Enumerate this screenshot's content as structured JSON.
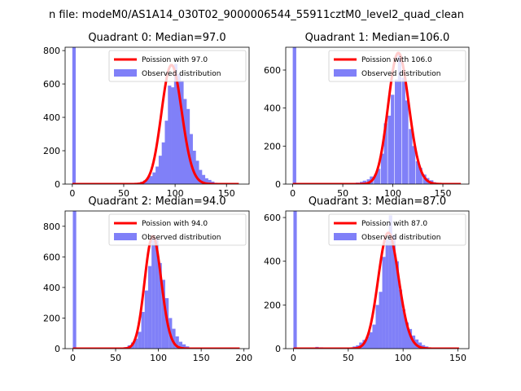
{
  "figure": {
    "suptitle": "n file: modeM0/AS1A14_030T02_9000006544_55911cztM0_level2_quad_clean",
    "colors": {
      "hist": "#8080f8",
      "fit": "#ff0000",
      "axes": "#000000",
      "background": "#ffffff"
    }
  },
  "chart_data": [
    {
      "type": "bar",
      "title": "Quadrant 0: Median=97.0",
      "median": 97.0,
      "xlim": [
        -7,
        172
      ],
      "ylim": [
        0,
        820
      ],
      "xticks": [
        0,
        50,
        100,
        150
      ],
      "yticks": [
        0,
        200,
        400,
        600,
        800
      ],
      "legend": {
        "placement": "top-right",
        "fit_label": "Poission with 97.0",
        "hist_label": "Observed distribution"
      },
      "series": [
        {
          "name": "Observed distribution",
          "type": "hist",
          "bin_width": 3.3,
          "bins": [
            [
              0,
              820
            ],
            [
              60,
              5
            ],
            [
              63,
              8
            ],
            [
              66,
              14
            ],
            [
              69,
              22
            ],
            [
              72,
              35
            ],
            [
              75,
              48
            ],
            [
              78,
              70
            ],
            [
              81,
              105
            ],
            [
              84,
              170
            ],
            [
              87,
              250
            ],
            [
              90,
              380
            ],
            [
              93,
              590
            ],
            [
              96,
              580
            ],
            [
              99,
              720
            ],
            [
              102,
              660
            ],
            [
              105,
              620
            ],
            [
              108,
              510
            ],
            [
              111,
              450
            ],
            [
              114,
              300
            ],
            [
              117,
              200
            ],
            [
              120,
              140
            ],
            [
              123,
              85
            ],
            [
              126,
              55
            ],
            [
              129,
              35
            ],
            [
              132,
              25
            ],
            [
              135,
              15
            ],
            [
              138,
              8
            ]
          ]
        },
        {
          "name": "Poission with 97.0",
          "type": "line",
          "mean": 97.0,
          "peak": 713,
          "x_range": [
            0,
            162
          ]
        }
      ]
    },
    {
      "type": "bar",
      "title": "Quadrant 1: Median=106.0",
      "median": 106.0,
      "xlim": [
        -7,
        176
      ],
      "ylim": [
        0,
        720
      ],
      "xticks": [
        0,
        50,
        100,
        150
      ],
      "yticks": [
        0,
        200,
        400,
        600
      ],
      "legend": {
        "placement": "top-right",
        "fit_label": "Poission with 106.0",
        "hist_label": "Observed distribution"
      },
      "series": [
        {
          "name": "Observed distribution",
          "type": "hist",
          "bin_width": 3.5,
          "bins": [
            [
              0,
              720
            ],
            [
              56,
              3
            ],
            [
              60,
              5
            ],
            [
              63,
              8
            ],
            [
              67,
              12
            ],
            [
              70,
              18
            ],
            [
              74,
              25
            ],
            [
              77,
              40
            ],
            [
              81,
              50
            ],
            [
              84,
              80
            ],
            [
              88,
              160
            ],
            [
              91,
              320
            ],
            [
              95,
              360
            ],
            [
              98,
              470
            ],
            [
              102,
              550
            ],
            [
              105,
              680
            ],
            [
              109,
              560
            ],
            [
              112,
              440
            ],
            [
              116,
              290
            ],
            [
              119,
              200
            ],
            [
              123,
              120
            ],
            [
              126,
              85
            ],
            [
              130,
              50
            ],
            [
              133,
              32
            ],
            [
              137,
              20
            ],
            [
              140,
              10
            ]
          ]
        },
        {
          "name": "Poission with 106.0",
          "type": "line",
          "mean": 106.0,
          "peak": 690,
          "x_range": [
            0,
            168
          ]
        }
      ]
    },
    {
      "type": "bar",
      "title": "Quadrant 2: Median=94.0",
      "median": 94.0,
      "xlim": [
        -9,
        206
      ],
      "ylim": [
        0,
        900
      ],
      "xticks": [
        0,
        50,
        100,
        150,
        200
      ],
      "yticks": [
        0,
        200,
        400,
        600,
        800
      ],
      "legend": {
        "placement": "top-right",
        "fit_label": "Poission with 94.0",
        "hist_label": "Observed distribution"
      },
      "series": [
        {
          "name": "Observed distribution",
          "type": "hist",
          "bin_width": 4.0,
          "bins": [
            [
              0,
              900
            ],
            [
              56,
              5
            ],
            [
              60,
              10
            ],
            [
              64,
              22
            ],
            [
              68,
              40
            ],
            [
              72,
              65
            ],
            [
              76,
              110
            ],
            [
              80,
              240
            ],
            [
              84,
              380
            ],
            [
              88,
              540
            ],
            [
              92,
              740
            ],
            [
              96,
              720
            ],
            [
              100,
              560
            ],
            [
              104,
              450
            ],
            [
              108,
              330
            ],
            [
              112,
              200
            ],
            [
              116,
              130
            ],
            [
              120,
              80
            ],
            [
              124,
              45
            ],
            [
              128,
              28
            ],
            [
              132,
              15
            ]
          ]
        },
        {
          "name": "Poission with 94.0",
          "type": "line",
          "mean": 94.0,
          "peak": 735,
          "x_range": [
            0,
            195
          ]
        }
      ]
    },
    {
      "type": "bar",
      "title": "Quadrant 3: Median=87.0",
      "median": 87.0,
      "xlim": [
        -7,
        160
      ],
      "ylim": [
        0,
        630
      ],
      "xticks": [
        0,
        50,
        100,
        150
      ],
      "yticks": [
        0,
        200,
        400,
        600
      ],
      "legend": {
        "placement": "top-right",
        "fit_label": "Poission with 87.0",
        "hist_label": "Observed distribution"
      },
      "series": [
        {
          "name": "Observed distribution",
          "type": "hist",
          "bin_width": 3.1,
          "bins": [
            [
              0,
              630
            ],
            [
              20,
              8
            ],
            [
              24,
              6
            ],
            [
              51,
              5
            ],
            [
              54,
              10
            ],
            [
              57,
              15
            ],
            [
              60,
              28
            ],
            [
              63,
              40
            ],
            [
              66,
              55
            ],
            [
              69,
              75
            ],
            [
              72,
              110
            ],
            [
              75,
              200
            ],
            [
              78,
              260
            ],
            [
              81,
              420
            ],
            [
              84,
              500
            ],
            [
              87,
              610
            ],
            [
              90,
              520
            ],
            [
              93,
              400
            ],
            [
              96,
              270
            ],
            [
              99,
              180
            ],
            [
              102,
              120
            ],
            [
              105,
              90
            ],
            [
              108,
              60
            ],
            [
              111,
              42
            ],
            [
              114,
              28
            ],
            [
              117,
              16
            ],
            [
              120,
              10
            ]
          ]
        },
        {
          "name": "Poission with 87.0",
          "type": "line",
          "mean": 87.0,
          "peak": 530,
          "x_range": [
            0,
            151
          ]
        }
      ]
    }
  ]
}
